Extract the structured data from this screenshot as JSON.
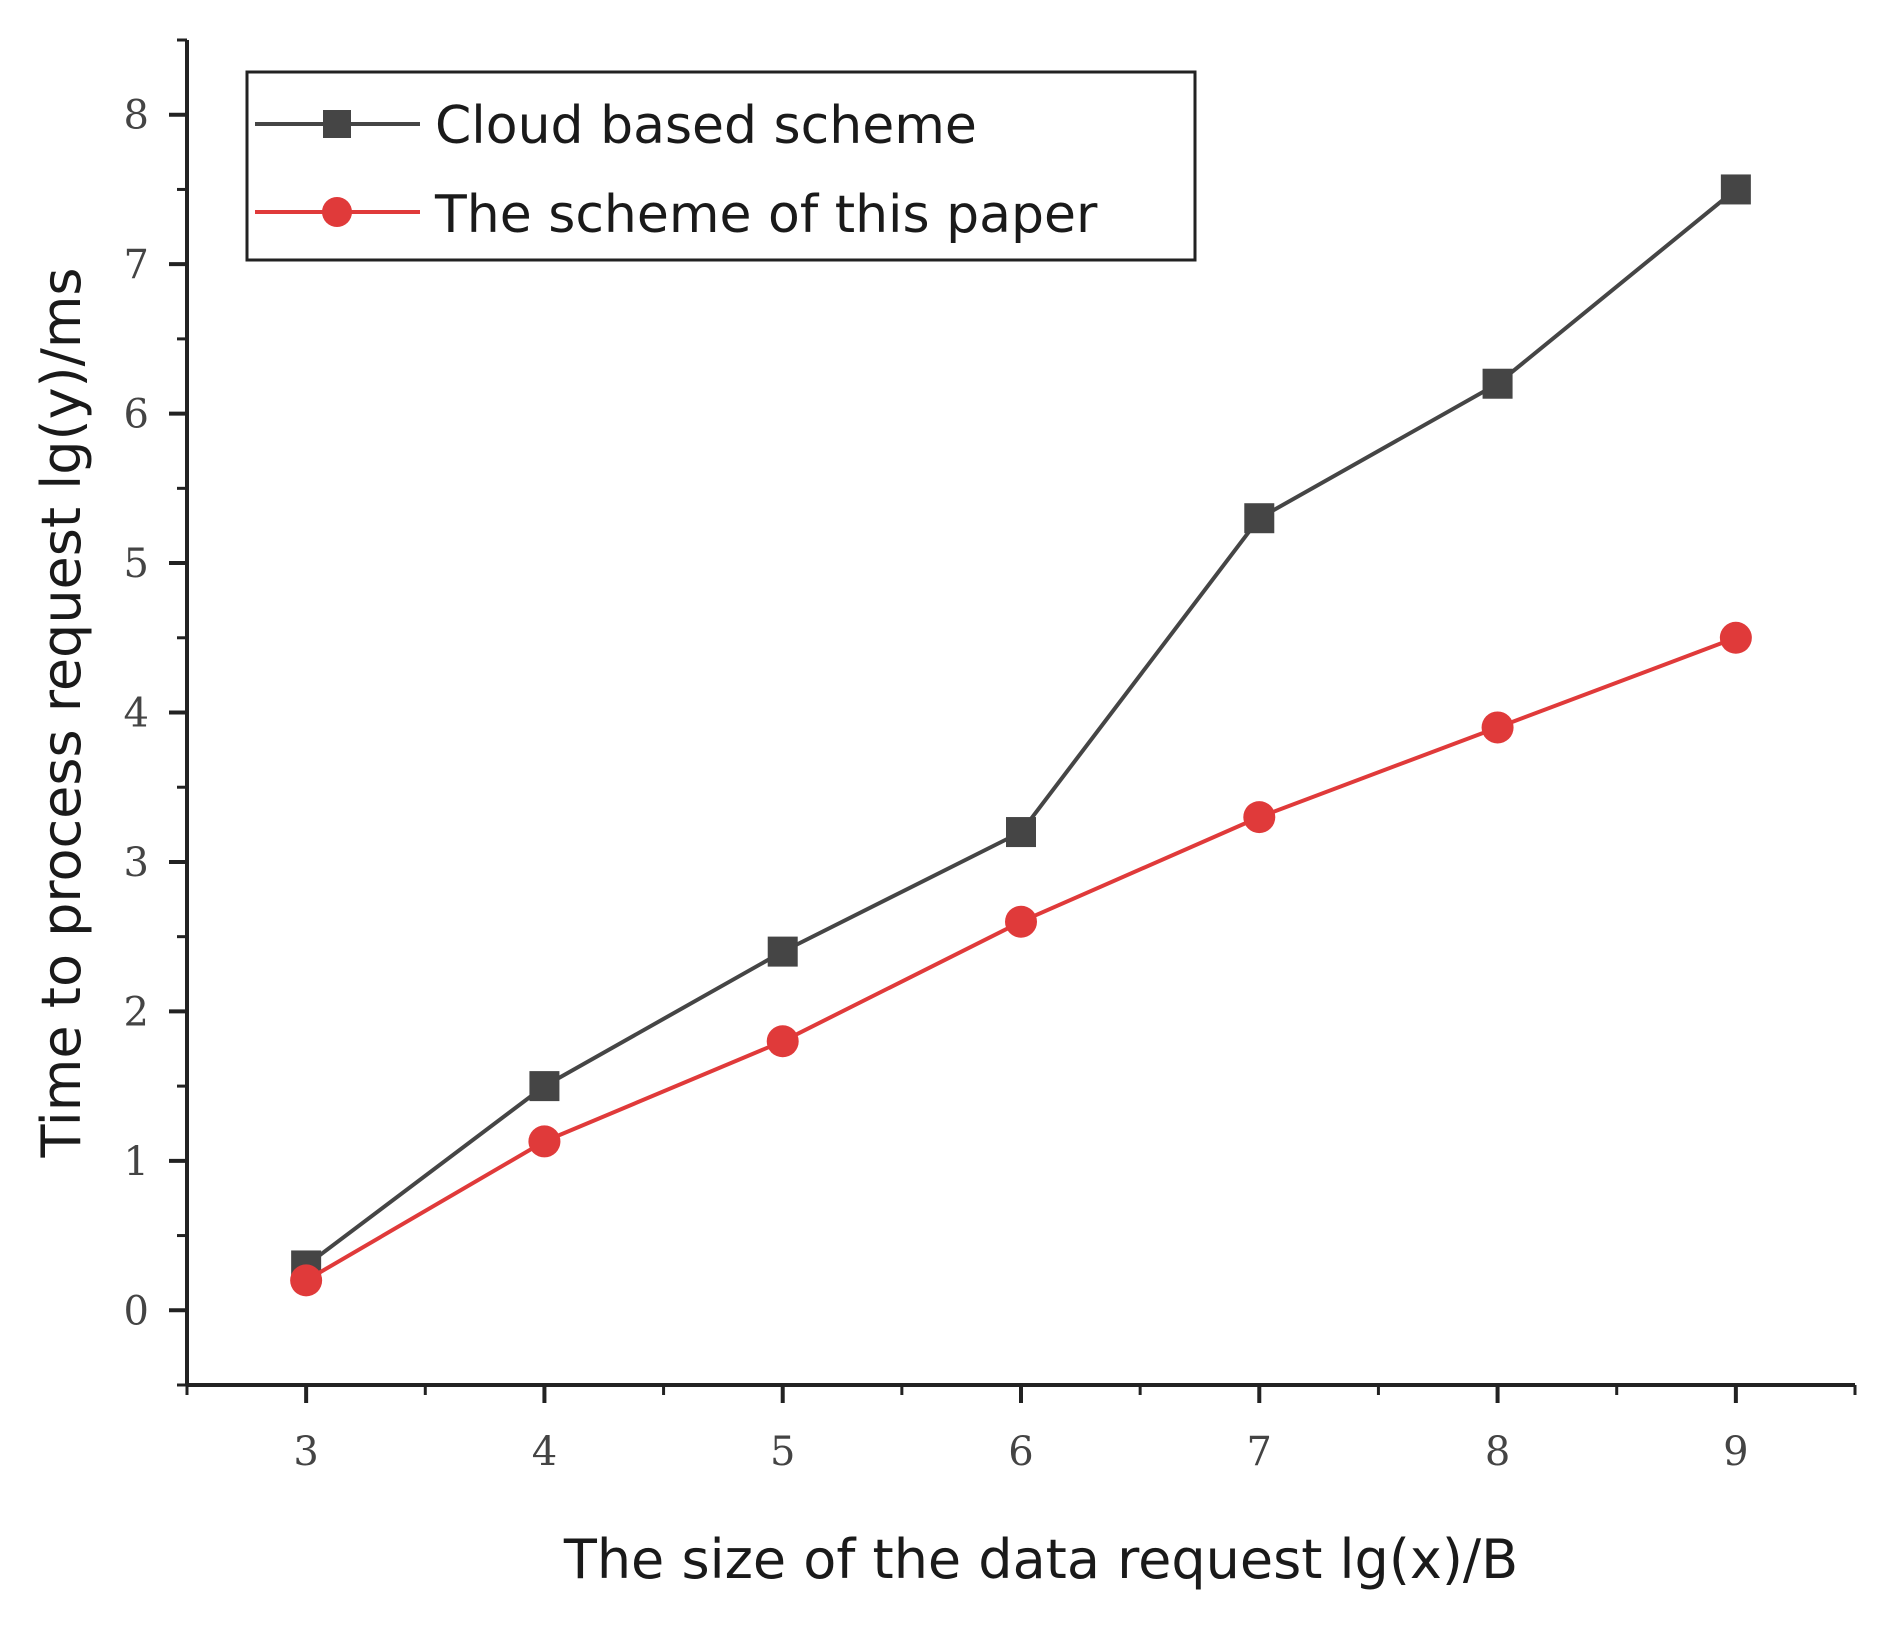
{
  "chart_data": {
    "type": "line",
    "xlabel": "The size of the data request lg(x)/B",
    "ylabel": "Time to process request lg(y)/ms",
    "xlim": [
      2.5,
      9.5
    ],
    "ylim": [
      -0.5,
      8.5
    ],
    "xticks": [
      3,
      4,
      5,
      6,
      7,
      8,
      9
    ],
    "yticks": [
      0,
      1,
      2,
      3,
      4,
      5,
      6,
      7,
      8
    ],
    "grid": false,
    "legend": "top-left",
    "series": [
      {
        "name": "Cloud based scheme",
        "color": "#454545",
        "marker": "square",
        "x": [
          3,
          4,
          5,
          6,
          7,
          8,
          9
        ],
        "y": [
          0.3,
          1.5,
          2.4,
          3.2,
          5.3,
          6.2,
          7.5
        ]
      },
      {
        "name": "The scheme of this paper",
        "color": "#e03a3a",
        "marker": "circle",
        "x": [
          3,
          4,
          5,
          6,
          7,
          8,
          9
        ],
        "y": [
          0.2,
          1.13,
          1.8,
          2.6,
          3.3,
          3.9,
          4.5
        ]
      }
    ]
  }
}
